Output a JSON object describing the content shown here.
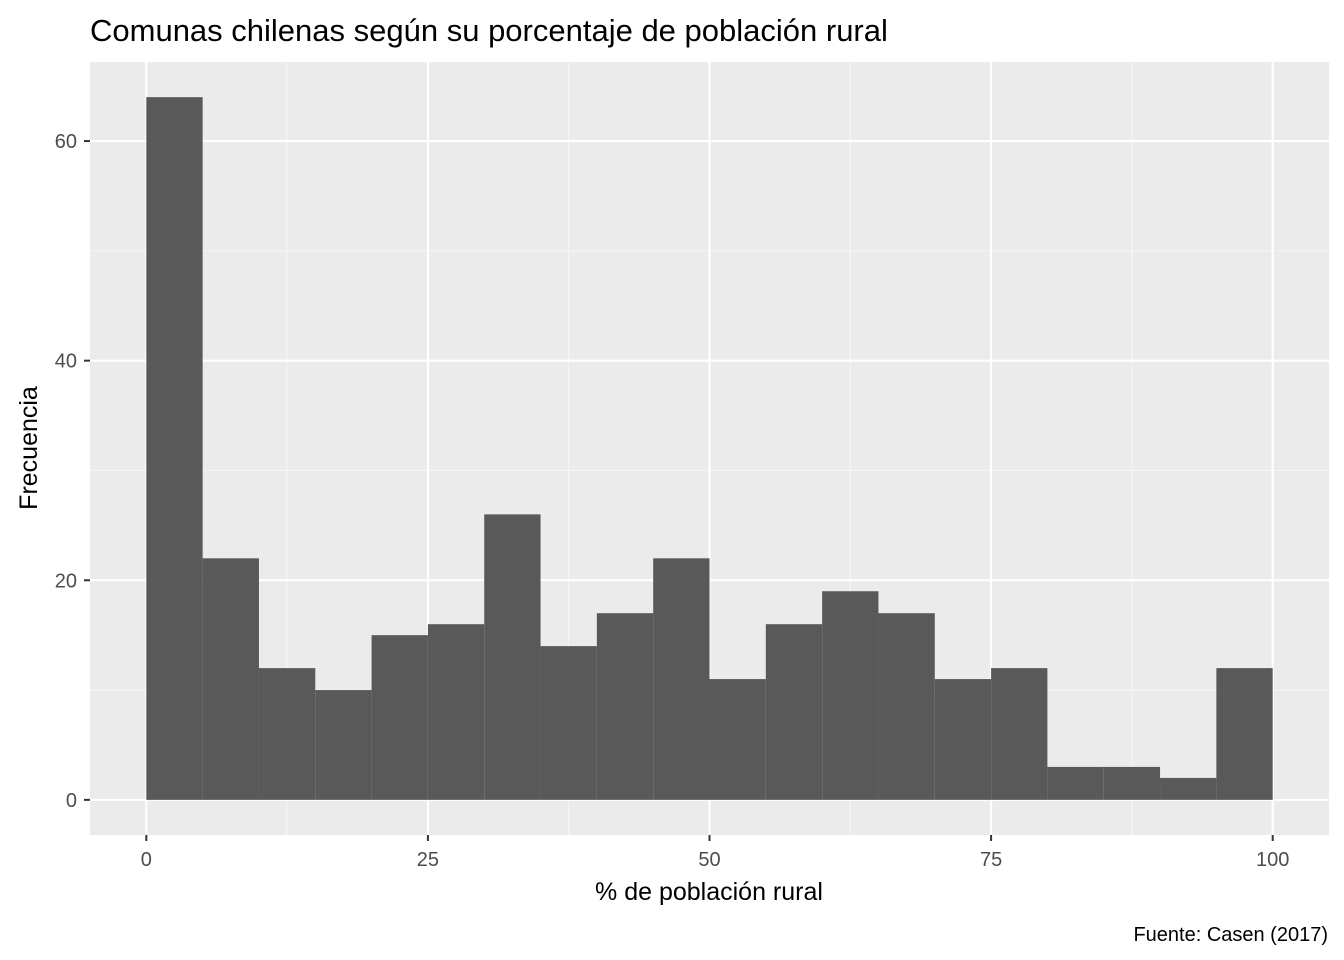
{
  "chart_data": {
    "type": "bar",
    "subtype": "histogram",
    "title": "Comunas chilenas según su porcentaje de población rural",
    "xlabel": "% de población rural",
    "ylabel": "Frecuencia",
    "caption": "Fuente: Casen (2017)",
    "bin_width": 5,
    "bins": [
      {
        "x0": 0,
        "x1": 5,
        "count": 64
      },
      {
        "x0": 5,
        "x1": 10,
        "count": 22
      },
      {
        "x0": 10,
        "x1": 15,
        "count": 12
      },
      {
        "x0": 15,
        "x1": 20,
        "count": 10
      },
      {
        "x0": 20,
        "x1": 25,
        "count": 15
      },
      {
        "x0": 25,
        "x1": 30,
        "count": 16
      },
      {
        "x0": 30,
        "x1": 35,
        "count": 26
      },
      {
        "x0": 35,
        "x1": 40,
        "count": 14
      },
      {
        "x0": 40,
        "x1": 45,
        "count": 17
      },
      {
        "x0": 45,
        "x1": 50,
        "count": 22
      },
      {
        "x0": 50,
        "x1": 55,
        "count": 11
      },
      {
        "x0": 55,
        "x1": 60,
        "count": 16
      },
      {
        "x0": 60,
        "x1": 65,
        "count": 19
      },
      {
        "x0": 65,
        "x1": 70,
        "count": 17
      },
      {
        "x0": 70,
        "x1": 75,
        "count": 11
      },
      {
        "x0": 75,
        "x1": 80,
        "count": 12
      },
      {
        "x0": 80,
        "x1": 85,
        "count": 3
      },
      {
        "x0": 85,
        "x1": 90,
        "count": 3
      },
      {
        "x0": 90,
        "x1": 95,
        "count": 2
      },
      {
        "x0": 95,
        "x1": 100,
        "count": 12
      }
    ],
    "xlim": [
      -5,
      105
    ],
    "ylim": [
      -3.2,
      67.2
    ],
    "x_ticks": [
      0,
      25,
      50,
      75,
      100
    ],
    "y_ticks": [
      0,
      20,
      40,
      60
    ],
    "grid": true,
    "legend": "none",
    "colors": {
      "bar": "#595959",
      "panel": "#ebebeb",
      "grid_major": "#ffffff",
      "grid_minor": "#f5f5f5",
      "tick_label": "#4d4d4d"
    }
  }
}
